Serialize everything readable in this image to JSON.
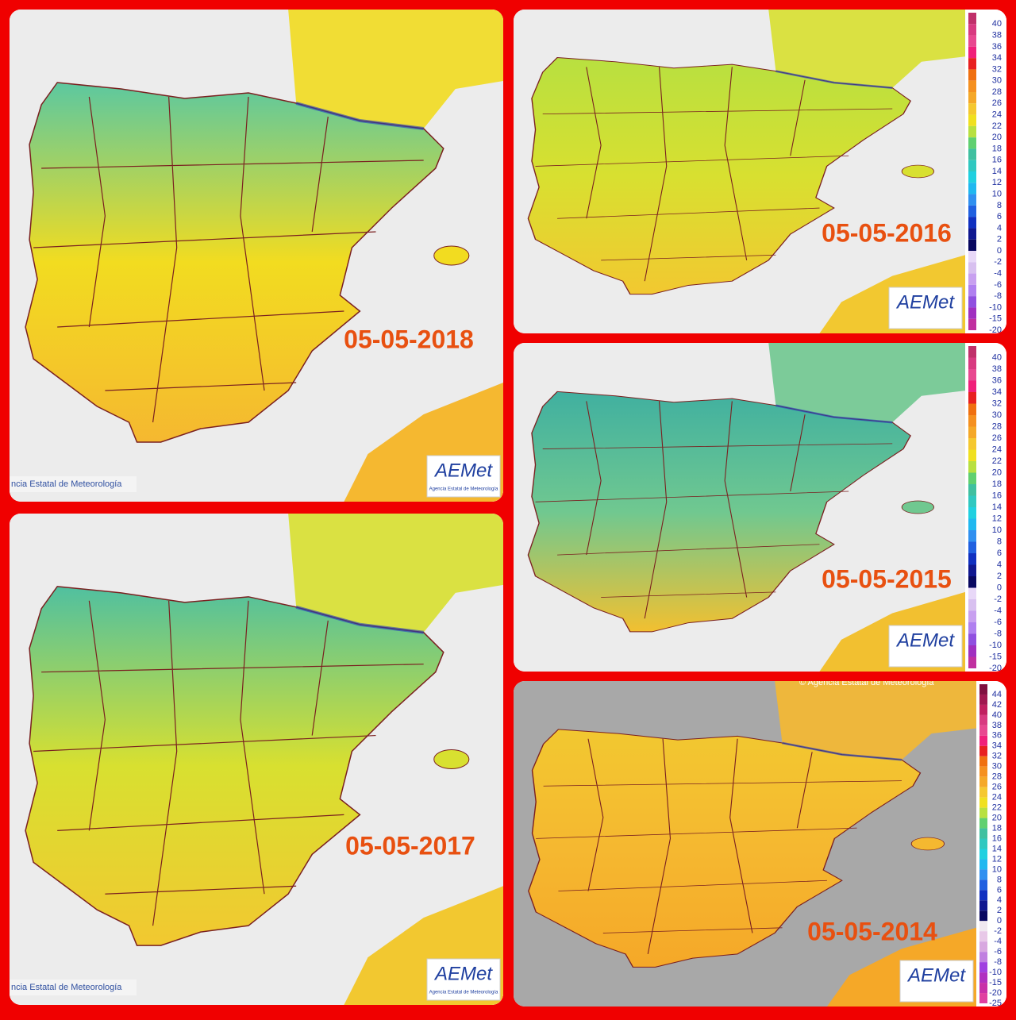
{
  "panels": [
    {
      "date": "05-05-2018",
      "footer": "ncia Estatal de Meteorología",
      "logo": "AEMet",
      "logo_subtitle": "Agencia Estatal de Meteorología",
      "north_color": "#5cc8a0",
      "south_color": "#f5b830",
      "land_color": "#f2dc20"
    },
    {
      "date": "05-05-2016",
      "logo": "AEMet",
      "north_color": "#b8e040",
      "south_color": "#f2c830",
      "land_color": "#d8e030",
      "legend": [
        {
          "label": "40",
          "color": "#c0306a"
        },
        {
          "label": "38",
          "color": "#d83a80"
        },
        {
          "label": "36",
          "color": "#e84890"
        },
        {
          "label": "34",
          "color": "#f0207a"
        },
        {
          "label": "32",
          "color": "#e82020"
        },
        {
          "label": "30",
          "color": "#f07010"
        },
        {
          "label": "28",
          "color": "#f59020"
        },
        {
          "label": "26",
          "color": "#f5a828"
        },
        {
          "label": "24",
          "color": "#f5c830"
        },
        {
          "label": "22",
          "color": "#f0e020"
        },
        {
          "label": "20",
          "color": "#b8e040"
        },
        {
          "label": "18",
          "color": "#60d070"
        },
        {
          "label": "16",
          "color": "#40c0a0"
        },
        {
          "label": "14",
          "color": "#30c8c0"
        },
        {
          "label": "12",
          "color": "#20d0e0"
        },
        {
          "label": "10",
          "color": "#20b8f0"
        },
        {
          "label": "8",
          "color": "#3090f0"
        },
        {
          "label": "6",
          "color": "#2060e0"
        },
        {
          "label": "4",
          "color": "#1030c0"
        },
        {
          "label": "2",
          "color": "#101890"
        },
        {
          "label": "0",
          "color": "#080860"
        },
        {
          "label": "-2",
          "color": "#e8d8f8"
        },
        {
          "label": "-4",
          "color": "#d8c0f0"
        },
        {
          "label": "-6",
          "color": "#c8a0f0"
        },
        {
          "label": "-8",
          "color": "#b080f0"
        },
        {
          "label": "-10",
          "color": "#9050e0"
        },
        {
          "label": "-15",
          "color": "#a030c0"
        },
        {
          "label": "-20",
          "color": "#c030a0"
        }
      ]
    },
    {
      "date": "05-05-2015",
      "logo": "AEMet",
      "north_color": "#40b0a0",
      "south_color": "#f2c030",
      "land_color": "#70c890",
      "legend": [
        {
          "label": "40",
          "color": "#c0306a"
        },
        {
          "label": "38",
          "color": "#d83a80"
        },
        {
          "label": "36",
          "color": "#e84890"
        },
        {
          "label": "34",
          "color": "#f0207a"
        },
        {
          "label": "32",
          "color": "#e82020"
        },
        {
          "label": "30",
          "color": "#f07010"
        },
        {
          "label": "28",
          "color": "#f59020"
        },
        {
          "label": "26",
          "color": "#f5a828"
        },
        {
          "label": "24",
          "color": "#f5c830"
        },
        {
          "label": "22",
          "color": "#f0e020"
        },
        {
          "label": "20",
          "color": "#b8e040"
        },
        {
          "label": "18",
          "color": "#60d070"
        },
        {
          "label": "16",
          "color": "#40c0a0"
        },
        {
          "label": "14",
          "color": "#30c8c0"
        },
        {
          "label": "12",
          "color": "#20d0e0"
        },
        {
          "label": "10",
          "color": "#20b8f0"
        },
        {
          "label": "8",
          "color": "#3090f0"
        },
        {
          "label": "6",
          "color": "#2060e0"
        },
        {
          "label": "4",
          "color": "#1030c0"
        },
        {
          "label": "2",
          "color": "#101890"
        },
        {
          "label": "0",
          "color": "#080860"
        },
        {
          "label": "-2",
          "color": "#e8d8f8"
        },
        {
          "label": "-4",
          "color": "#d8c0f0"
        },
        {
          "label": "-6",
          "color": "#c8a0f0"
        },
        {
          "label": "-8",
          "color": "#b080f0"
        },
        {
          "label": "-10",
          "color": "#9050e0"
        },
        {
          "label": "-15",
          "color": "#a030c0"
        },
        {
          "label": "-20",
          "color": "#c030a0"
        }
      ]
    },
    {
      "date": "05-05-2017",
      "footer": "ncia Estatal de Meteorología",
      "logo": "AEMet",
      "logo_subtitle": "Agencia Estatal de Meteorología",
      "north_color": "#50c0a0",
      "south_color": "#f2c830",
      "land_color": "#d8e030"
    },
    {
      "date": "05-05-2014",
      "header": "© Agencia Estatal de Meteorología",
      "logo": "AEMet",
      "north_color": "#f2c830",
      "south_color": "#f5a828",
      "land_color": "#f5b830",
      "legend": [
        {
          "label": "44",
          "color": "#801040"
        },
        {
          "label": "42",
          "color": "#a01850"
        },
        {
          "label": "40",
          "color": "#c02060"
        },
        {
          "label": "38",
          "color": "#d83a80"
        },
        {
          "label": "36",
          "color": "#e84890"
        },
        {
          "label": "34",
          "color": "#f0207a"
        },
        {
          "label": "32",
          "color": "#e82020"
        },
        {
          "label": "30",
          "color": "#f07010"
        },
        {
          "label": "28",
          "color": "#f59020"
        },
        {
          "label": "26",
          "color": "#f5a828"
        },
        {
          "label": "24",
          "color": "#f5c830"
        },
        {
          "label": "22",
          "color": "#f0e020"
        },
        {
          "label": "20",
          "color": "#b8e040"
        },
        {
          "label": "18",
          "color": "#60d070"
        },
        {
          "label": "16",
          "color": "#40c0a0"
        },
        {
          "label": "14",
          "color": "#30c8c0"
        },
        {
          "label": "12",
          "color": "#20d0e0"
        },
        {
          "label": "10",
          "color": "#20b8f0"
        },
        {
          "label": "8",
          "color": "#3090f0"
        },
        {
          "label": "6",
          "color": "#2060e0"
        },
        {
          "label": "4",
          "color": "#1030c0"
        },
        {
          "label": "2",
          "color": "#101890"
        },
        {
          "label": "0",
          "color": "#080860"
        },
        {
          "label": "-2",
          "color": "#f0e8f0"
        },
        {
          "label": "-4",
          "color": "#e8c8e8"
        },
        {
          "label": "-6",
          "color": "#d8a8e0"
        },
        {
          "label": "-8",
          "color": "#c080e0"
        },
        {
          "label": "-10",
          "color": "#a040e0"
        },
        {
          "label": "-15",
          "color": "#b030c0"
        },
        {
          "label": "-20",
          "color": "#c830a8"
        },
        {
          "label": "-25",
          "color": "#e040a0"
        }
      ]
    }
  ]
}
